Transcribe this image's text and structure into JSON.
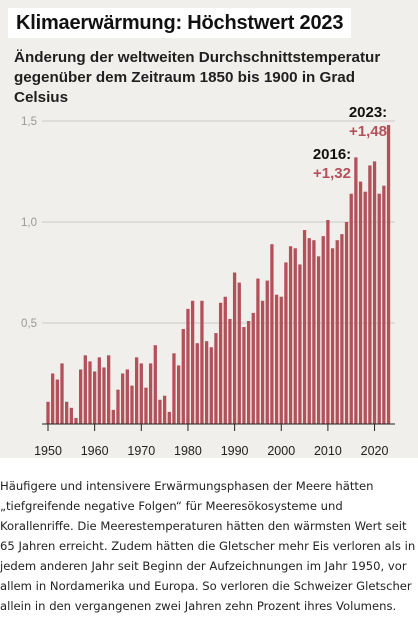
{
  "title": "Klimaerwärmung: Höchstwert 2023",
  "subtitle_lines": [
    "Änderung der weltweiten Durchschnittstemperatur",
    "gegenüber dem Zeitraum 1850 bis 1900 in Grad Celsius"
  ],
  "colors": {
    "bar": "#b4505a",
    "grid": "#c8c8c8",
    "axis_label": "#999999",
    "text": "#111111"
  },
  "chart_data": {
    "type": "bar",
    "x": [
      1950,
      1951,
      1952,
      1953,
      1954,
      1955,
      1956,
      1957,
      1958,
      1959,
      1960,
      1961,
      1962,
      1963,
      1964,
      1965,
      1966,
      1967,
      1968,
      1969,
      1970,
      1971,
      1972,
      1973,
      1974,
      1975,
      1976,
      1977,
      1978,
      1979,
      1980,
      1981,
      1982,
      1983,
      1984,
      1985,
      1986,
      1987,
      1988,
      1989,
      1990,
      1991,
      1992,
      1993,
      1994,
      1995,
      1996,
      1997,
      1998,
      1999,
      2000,
      2001,
      2002,
      2003,
      2004,
      2005,
      2006,
      2007,
      2008,
      2009,
      2010,
      2011,
      2012,
      2013,
      2014,
      2015,
      2016,
      2017,
      2018,
      2019,
      2020,
      2021,
      2022,
      2023
    ],
    "values": [
      0.11,
      0.25,
      0.22,
      0.3,
      0.11,
      0.08,
      0.03,
      0.27,
      0.34,
      0.31,
      0.26,
      0.33,
      0.28,
      0.34,
      0.07,
      0.17,
      0.25,
      0.27,
      0.19,
      0.33,
      0.3,
      0.18,
      0.3,
      0.39,
      0.12,
      0.14,
      0.06,
      0.35,
      0.29,
      0.47,
      0.57,
      0.61,
      0.4,
      0.61,
      0.41,
      0.38,
      0.45,
      0.6,
      0.63,
      0.52,
      0.75,
      0.7,
      0.48,
      0.51,
      0.55,
      0.72,
      0.61,
      0.71,
      0.89,
      0.64,
      0.63,
      0.8,
      0.88,
      0.87,
      0.79,
      0.96,
      0.92,
      0.91,
      0.83,
      0.93,
      1.01,
      0.87,
      0.91,
      0.94,
      1.0,
      1.14,
      1.32,
      1.2,
      1.15,
      1.28,
      1.3,
      1.14,
      1.18,
      1.48
    ],
    "x_ticks": [
      "1950",
      "1960",
      "1970",
      "1980",
      "1990",
      "2000",
      "2010",
      "2020"
    ],
    "y_ticks": [
      "0,5",
      "1,0",
      "1,5"
    ],
    "ylim": [
      0,
      1.6
    ],
    "grid": true,
    "annotations": [
      {
        "year": "2016:",
        "value": "+1,32"
      },
      {
        "year": "2023:",
        "value": "+1,48"
      }
    ]
  },
  "caption_lines": [
    "Häufigere und intensivere Erwärmungsphasen der Meere hätten",
    "„tiefgreifende negative Folgen“ für Meeresökosysteme und",
    "Korallenriffe. Die Meerestemperaturen hätten den wärmsten Wert seit",
    "65 Jahren erreicht. Zudem hätten die Gletscher mehr Eis verloren als in",
    "jedem anderen Jahr seit Beginn der Aufzeichnungen im Jahr 1950, vor",
    "allem in Nordamerika und Europa. So verloren die Schweizer Gletscher",
    "allein in den vergangenen zwei Jahren zehn Prozent ihres Volumens."
  ]
}
